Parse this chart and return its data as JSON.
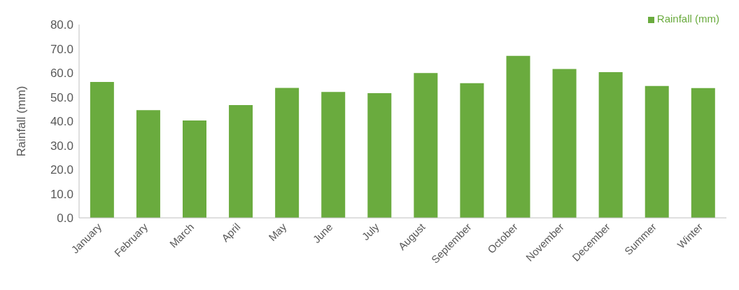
{
  "chart_data": {
    "type": "bar",
    "ylabel": "Rainfall (mm)",
    "categories": [
      "January",
      "February",
      "March",
      "April",
      "May",
      "June",
      "July",
      "August",
      "September",
      "October",
      "November",
      "December",
      "Summer",
      "Winter"
    ],
    "series": [
      {
        "name": "Rainfall (mm)",
        "color": "#6aab3e",
        "values": [
          56.2,
          44.6,
          40.3,
          46.7,
          53.8,
          52.1,
          51.6,
          59.9,
          55.7,
          67.0,
          61.6,
          60.3,
          54.6,
          53.7
        ]
      }
    ],
    "ylim": [
      0,
      80
    ],
    "yticks": [
      {
        "value": 0,
        "label": "0.0"
      },
      {
        "value": 10,
        "label": "10.0"
      },
      {
        "value": 20,
        "label": "20.0"
      },
      {
        "value": 30,
        "label": "30.0"
      },
      {
        "value": 40,
        "label": "40.0"
      },
      {
        "value": 50,
        "label": "50.0"
      },
      {
        "value": 60,
        "label": "60.0"
      },
      {
        "value": 70,
        "label": "70.0"
      },
      {
        "value": 80,
        "label": "80.0"
      }
    ],
    "grid": false,
    "legend": "top right"
  }
}
